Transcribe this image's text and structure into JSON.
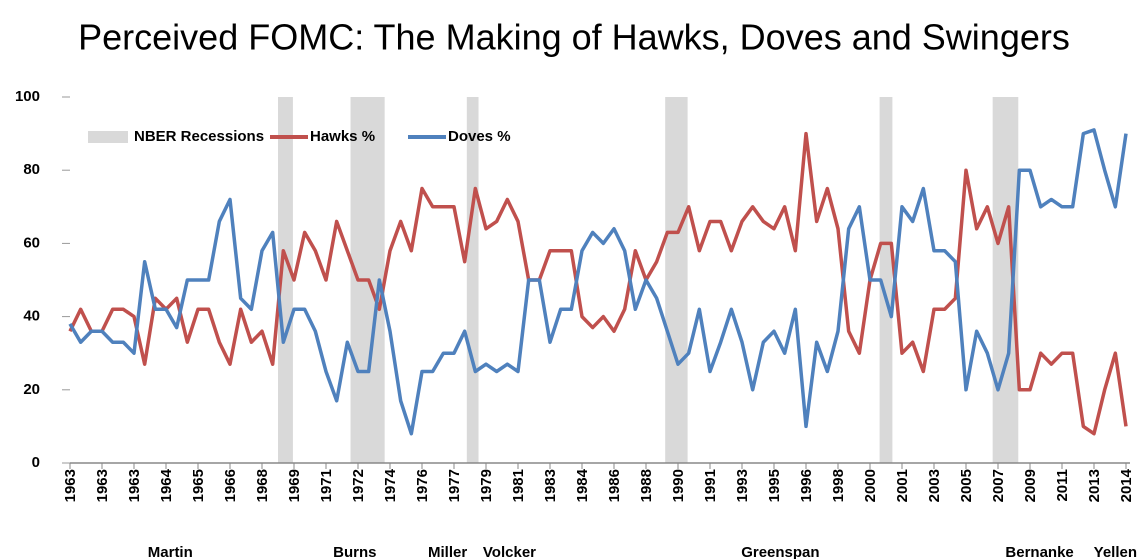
{
  "chart_data": {
    "type": "line",
    "title": "Perceived FOMC: The Making of Hawks, Doves and Swingers",
    "recession_label": "NBER Recessions",
    "recession_color": "#d9d9d9",
    "recessions": [
      [
        19.5,
        20.9
      ],
      [
        26.3,
        29.5
      ],
      [
        37.2,
        38.3
      ],
      [
        55.8,
        57.9
      ],
      [
        75.9,
        77.1
      ],
      [
        86.5,
        88.9
      ]
    ],
    "categories": [
      "1963",
      null,
      null,
      "1963",
      null,
      null,
      "1963",
      null,
      null,
      "1964",
      null,
      null,
      "1965",
      null,
      null,
      "1966",
      null,
      null,
      "1968",
      null,
      null,
      "1969",
      null,
      null,
      "1971",
      null,
      null,
      "1972",
      null,
      null,
      "1974",
      null,
      null,
      "1976",
      null,
      null,
      "1977",
      null,
      null,
      "1979",
      null,
      null,
      "1981",
      null,
      null,
      "1983",
      null,
      null,
      "1984",
      null,
      null,
      "1986",
      null,
      null,
      "1988",
      null,
      null,
      "1990",
      null,
      null,
      "1991",
      null,
      null,
      "1993",
      null,
      null,
      "1995",
      null,
      null,
      "1996",
      null,
      null,
      "1998",
      null,
      null,
      "2000",
      null,
      null,
      "2001",
      null,
      null,
      "2003",
      null,
      null,
      "2005",
      null,
      null,
      "2007",
      null,
      null,
      "2009",
      null,
      null,
      "2011",
      null,
      null,
      "2013",
      null,
      null,
      "2014"
    ],
    "series": [
      {
        "name": "Hawks %",
        "color": "#c0504d",
        "values": [
          36,
          42,
          36,
          36,
          42,
          42,
          40,
          27,
          45,
          42,
          45,
          33,
          42,
          42,
          33,
          27,
          42,
          33,
          36,
          27,
          58,
          50,
          63,
          58,
          50,
          66,
          58,
          50,
          50,
          42,
          58,
          66,
          58,
          75,
          70,
          70,
          70,
          55,
          75,
          64,
          66,
          72,
          66,
          50,
          50,
          58,
          58,
          58,
          40,
          37,
          40,
          36,
          42,
          58,
          50,
          55,
          63,
          63,
          70,
          58,
          66,
          66,
          58,
          66,
          70,
          66,
          64,
          70,
          58,
          90,
          66,
          75,
          64,
          36,
          30,
          50,
          60,
          60,
          30,
          33,
          25,
          42,
          42,
          45,
          80,
          64,
          70,
          60,
          70,
          20,
          20,
          30,
          27,
          30,
          30,
          10,
          8,
          20,
          30,
          10
        ]
      },
      {
        "name": "Doves %",
        "color": "#4f81bd",
        "values": [
          38,
          33,
          36,
          36,
          33,
          33,
          30,
          55,
          42,
          42,
          37,
          50,
          50,
          50,
          66,
          72,
          45,
          42,
          58,
          63,
          33,
          42,
          42,
          36,
          25,
          17,
          33,
          25,
          25,
          50,
          36,
          17,
          8,
          25,
          25,
          30,
          30,
          36,
          25,
          27,
          25,
          27,
          25,
          50,
          50,
          33,
          42,
          42,
          58,
          63,
          60,
          64,
          58,
          42,
          50,
          45,
          36,
          27,
          30,
          42,
          25,
          33,
          42,
          33,
          20,
          33,
          36,
          30,
          42,
          10,
          33,
          25,
          36,
          64,
          70,
          50,
          50,
          40,
          70,
          66,
          75,
          58,
          58,
          55,
          20,
          36,
          30,
          20,
          30,
          80,
          80,
          70,
          72,
          70,
          70,
          90,
          91,
          80,
          70,
          90
        ]
      }
    ],
    "ylim": [
      0,
      100
    ],
    "yticks": [
      0,
      20,
      40,
      60,
      80,
      100
    ],
    "chairs": [
      {
        "text": "Martin",
        "at": 9.4
      },
      {
        "text": "Burns",
        "at": 26.7
      },
      {
        "text": "Miller",
        "at": 35.4
      },
      {
        "text": "Volcker",
        "at": 41.2
      },
      {
        "text": "Greenspan",
        "at": 66.6
      },
      {
        "text": "Bernanke",
        "at": 90.9
      },
      {
        "text": "Yellen",
        "at": 98
      }
    ]
  }
}
